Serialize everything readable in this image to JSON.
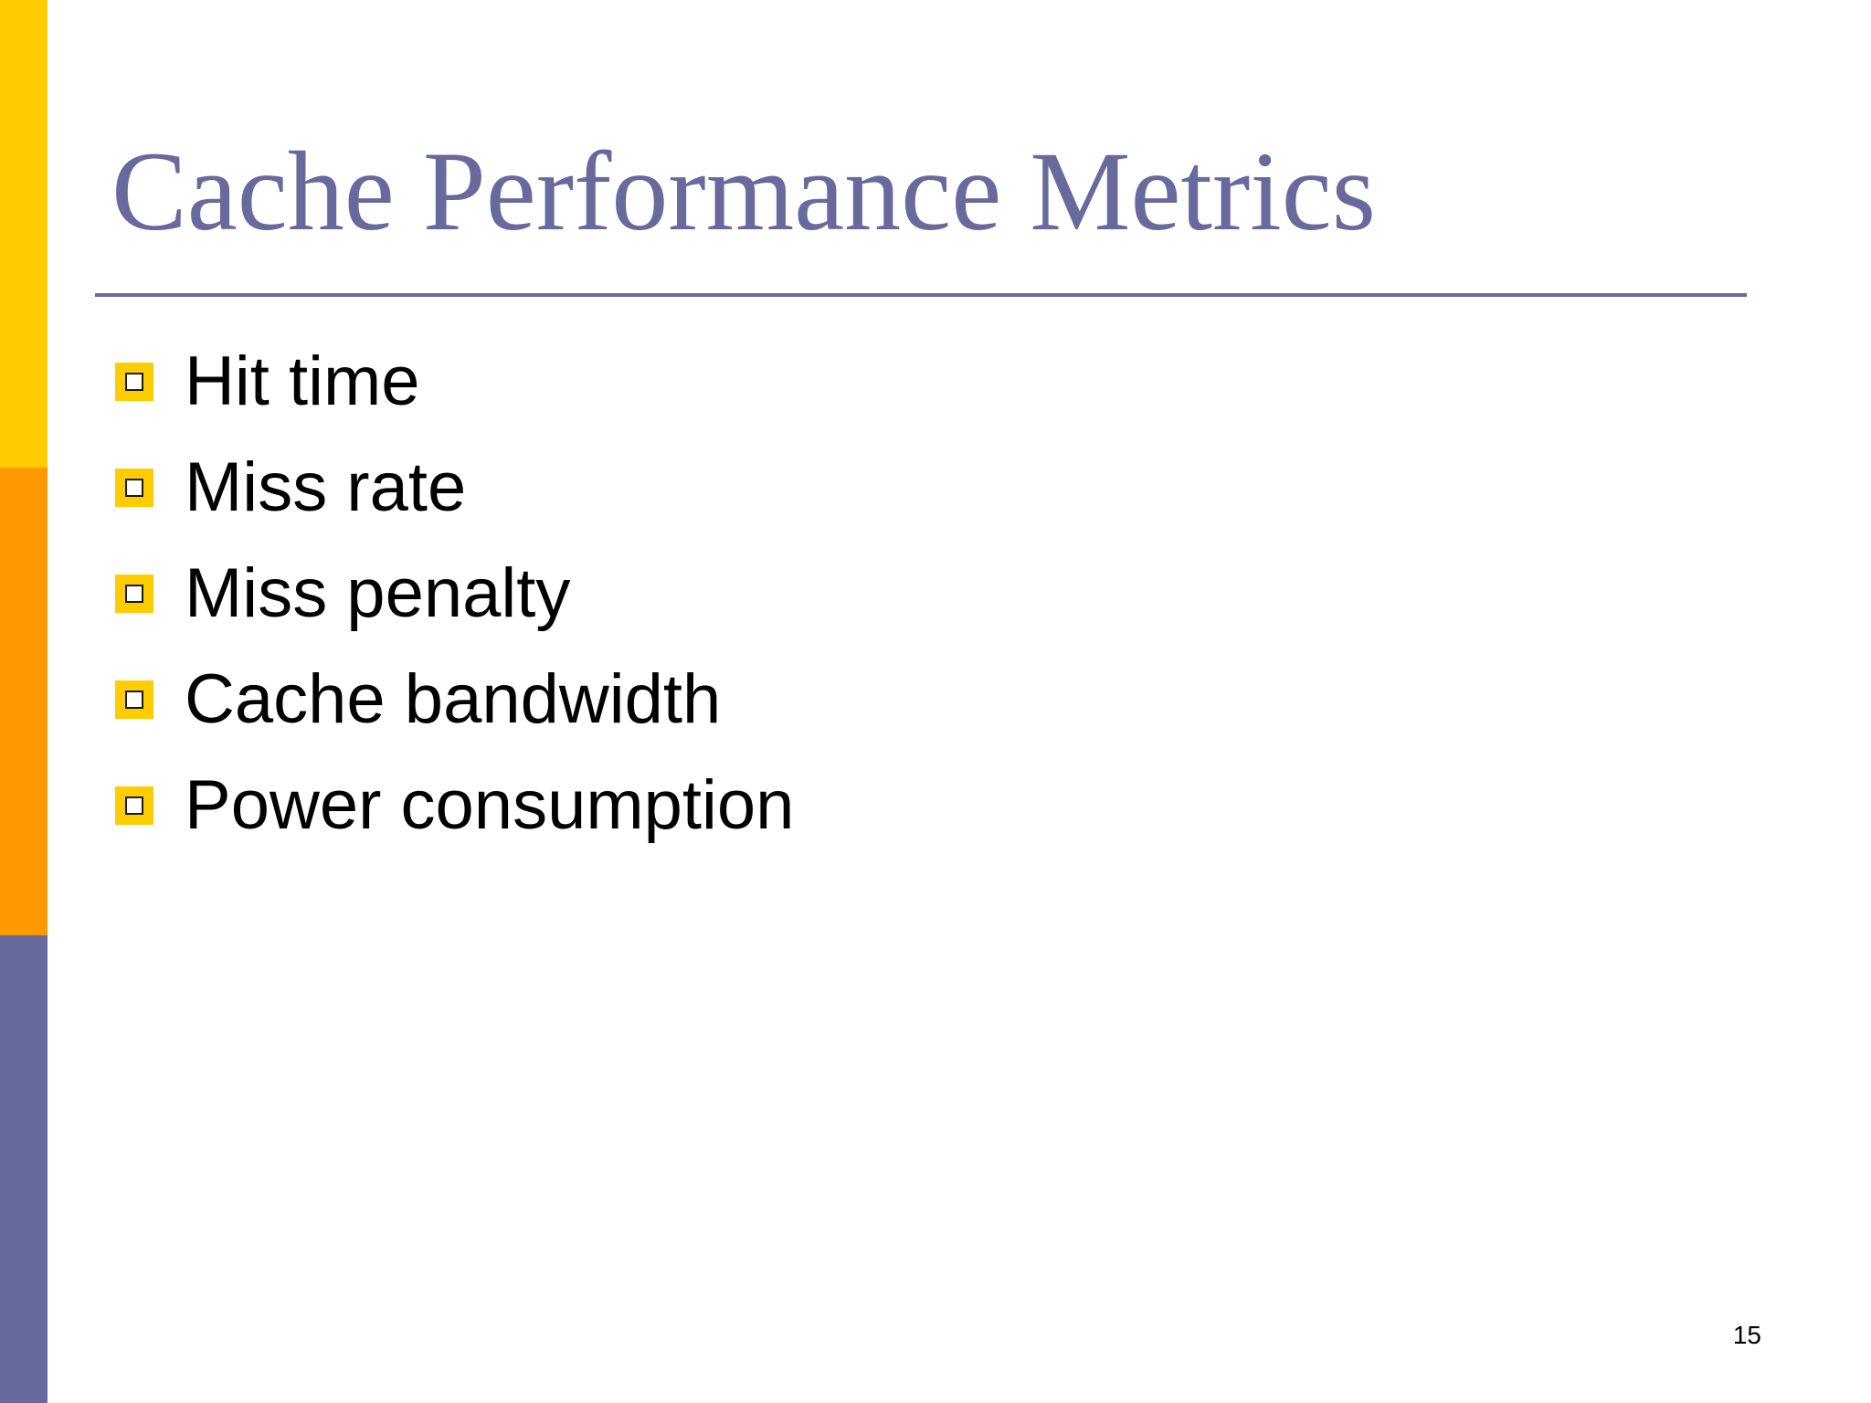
{
  "slide": {
    "title": "Cache Performance Metrics",
    "bullets": [
      "Hit time",
      "Miss rate",
      "Miss penalty",
      "Cache bandwidth",
      "Power consumption"
    ],
    "page_number": "15"
  },
  "colors": {
    "title": "#676a9c",
    "rule": "#676a9c",
    "bar_yellow": "#ffcc00",
    "bar_orange": "#ff9900",
    "bar_purple": "#676a9c",
    "bullet": "#ffcc00"
  },
  "icons": {
    "bullet": "square-bullet-icon"
  }
}
